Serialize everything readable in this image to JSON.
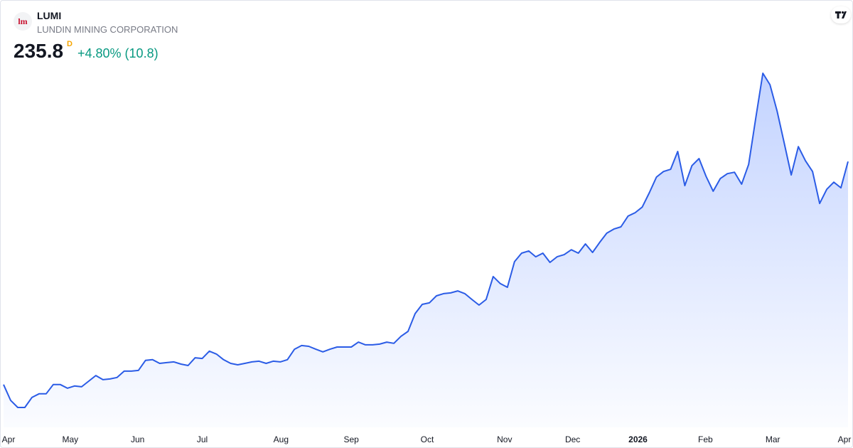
{
  "header": {
    "logo": "lm",
    "symbol": "LUMI",
    "name": "LUNDIN MINING CORPORATION",
    "price": "235.8",
    "interval": "D",
    "change": "+4.80% (10.8)"
  },
  "chart_data": {
    "type": "area",
    "series": [
      {
        "name": "LUMI",
        "color": "#2b5ce6",
        "values": [
          144.3,
          137.8,
          134.9,
          134.9,
          139.0,
          140.5,
          140.5,
          144.3,
          144.3,
          142.8,
          143.7,
          143.4,
          145.7,
          148.0,
          146.3,
          146.6,
          147.2,
          149.8,
          149.8,
          150.1,
          154.2,
          154.5,
          153.0,
          153.3,
          153.6,
          152.7,
          152.1,
          155.3,
          155.0,
          158.0,
          156.8,
          154.5,
          153.0,
          152.4,
          153.0,
          153.6,
          153.9,
          153.0,
          153.9,
          153.6,
          154.5,
          158.8,
          160.3,
          160.0,
          158.8,
          157.7,
          158.8,
          159.7,
          159.7,
          159.7,
          161.7,
          160.6,
          160.6,
          160.9,
          161.7,
          161.2,
          164.1,
          166.1,
          173.4,
          177.2,
          177.8,
          180.7,
          181.6,
          181.9,
          182.7,
          181.6,
          179.2,
          176.9,
          179.2,
          188.6,
          185.7,
          184.2,
          194.7,
          198.2,
          199.1,
          196.7,
          198.2,
          194.4,
          196.7,
          197.6,
          199.6,
          198.2,
          202.0,
          198.5,
          202.6,
          206.4,
          208.1,
          209.0,
          213.4,
          214.8,
          217.1,
          223.0,
          229.4,
          231.7,
          232.6,
          239.9,
          225.9,
          234.1,
          237.0,
          229.7,
          223.6,
          228.8,
          230.8,
          231.4,
          226.5,
          234.6,
          253.6,
          272.0,
          267.3,
          256.5,
          243.4,
          230.3,
          241.9,
          236.1,
          231.7,
          218.6,
          224.4,
          227.3,
          225.0,
          235.8
        ]
      }
    ],
    "xlim": [
      0,
      119
    ],
    "xticks": [
      {
        "value": 0.7,
        "label": "Apr"
      },
      {
        "value": 9.4,
        "label": "May"
      },
      {
        "value": 18.9,
        "label": "Jun"
      },
      {
        "value": 28.0,
        "label": "Jul"
      },
      {
        "value": 39.1,
        "label": "Aug"
      },
      {
        "value": 49.0,
        "label": "Sep"
      },
      {
        "value": 59.7,
        "label": "Oct"
      },
      {
        "value": 70.6,
        "label": "Nov"
      },
      {
        "value": 80.2,
        "label": "Dec"
      },
      {
        "value": 89.4,
        "label": "2026"
      },
      {
        "value": 98.9,
        "label": "Feb"
      },
      {
        "value": 108.4,
        "label": "Mar"
      },
      {
        "value": 118.5,
        "label": "Apr"
      }
    ],
    "grid": false
  }
}
